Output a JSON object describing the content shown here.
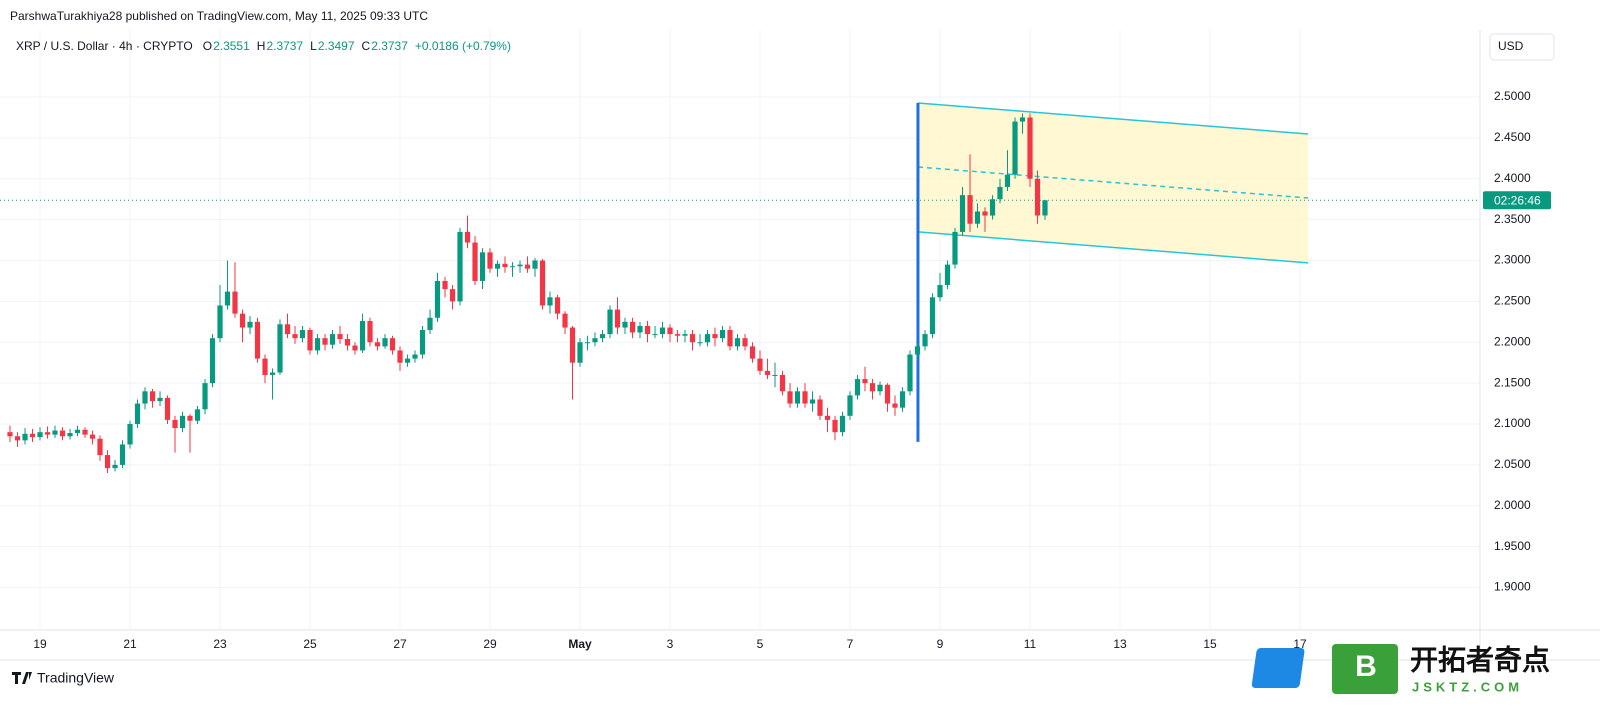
{
  "header": {
    "published": "ParshwaTurakhiya28 published on TradingView.com, May 11, 2025 09:33 UTC"
  },
  "legend": {
    "symbol": "XRP / U.S. Dollar · 4h · CRYPTO",
    "fields": [
      "O",
      "H",
      "L",
      "C"
    ],
    "change": "+0.0186 (+0.79%)"
  },
  "currency": "USD",
  "countdown": "02:26:46",
  "footer": {
    "brand": "TradingView"
  },
  "watermark": {
    "logo": "B",
    "name": "开拓者奇点",
    "site": "JSKTZ.COM"
  },
  "chart_data": {
    "type": "candlestick",
    "up_color": "#089981",
    "down_color": "#f23645",
    "grid": true,
    "xlim": [
      18.333,
      51
    ],
    "ylim": [
      1.848,
      2.582
    ],
    "xticks": [
      19,
      21,
      23,
      25,
      27,
      29,
      {
        "value": 31,
        "label": "May"
      },
      {
        "value": 33,
        "label": "3"
      },
      {
        "value": 35,
        "label": "5"
      },
      {
        "value": 37,
        "label": "7"
      },
      {
        "value": 39,
        "label": "9"
      },
      {
        "value": 41,
        "label": "11"
      },
      {
        "value": 43,
        "label": "13"
      },
      {
        "value": 45,
        "label": "15"
      },
      {
        "value": 47,
        "label": "17"
      }
    ],
    "yticks": [
      {
        "value": 1.9,
        "label": "1.9000"
      },
      {
        "value": 1.95,
        "label": "1.9500"
      },
      {
        "value": 2.0,
        "label": "2.0000"
      },
      {
        "value": 2.05,
        "label": "2.0500"
      },
      {
        "value": 2.1,
        "label": "2.1000"
      },
      {
        "value": 2.15,
        "label": "2.1500"
      },
      {
        "value": 2.2,
        "label": "2.2000"
      },
      {
        "value": 2.25,
        "label": "2.2500"
      },
      {
        "value": 2.3,
        "label": "2.3000"
      },
      {
        "value": 2.35,
        "label": "2.3500"
      },
      {
        "value": 2.4,
        "label": "2.4000"
      },
      {
        "value": 2.45,
        "label": "2.4500"
      },
      {
        "value": 2.5,
        "label": "2.5000"
      }
    ],
    "x": [
      18.333,
      18.5,
      18.667,
      18.833,
      19,
      19.167,
      19.333,
      19.5,
      19.667,
      19.833,
      20,
      20.167,
      20.333,
      20.5,
      20.667,
      20.833,
      21,
      21.167,
      21.333,
      21.5,
      21.667,
      21.833,
      22,
      22.167,
      22.333,
      22.5,
      22.667,
      22.833,
      23,
      23.167,
      23.333,
      23.5,
      23.667,
      23.833,
      24,
      24.167,
      24.333,
      24.5,
      24.667,
      24.833,
      25,
      25.167,
      25.333,
      25.5,
      25.667,
      25.833,
      26,
      26.167,
      26.333,
      26.5,
      26.667,
      26.833,
      27,
      27.167,
      27.333,
      27.5,
      27.667,
      27.833,
      28,
      28.167,
      28.333,
      28.5,
      28.667,
      28.833,
      29,
      29.167,
      29.333,
      29.5,
      29.667,
      29.833,
      30,
      30.167,
      30.333,
      30.5,
      30.667,
      30.833,
      31,
      31.167,
      31.333,
      31.5,
      31.667,
      31.833,
      32,
      32.167,
      32.333,
      32.5,
      32.667,
      32.833,
      33,
      33.167,
      33.333,
      33.5,
      33.667,
      33.833,
      34,
      34.167,
      34.333,
      34.5,
      34.667,
      34.833,
      35,
      35.167,
      35.333,
      35.5,
      35.667,
      35.833,
      36,
      36.167,
      36.333,
      36.5,
      36.667,
      36.833,
      37,
      37.167,
      37.333,
      37.5,
      37.667,
      37.833,
      38,
      38.167,
      38.333,
      38.5,
      38.667,
      38.833,
      39,
      39.167,
      39.333,
      39.5,
      39.667,
      39.833,
      40,
      40.167,
      40.333,
      40.5,
      40.667,
      40.833,
      41,
      41.167,
      41.333
    ],
    "open": [
      2.09,
      2.085,
      2.08,
      2.088,
      2.084,
      2.09,
      2.087,
      2.092,
      2.085,
      2.089,
      2.093,
      2.087,
      2.082,
      2.062,
      2.046,
      2.05,
      2.075,
      2.1,
      2.125,
      2.14,
      2.128,
      2.132,
      2.105,
      2.095,
      2.11,
      2.104,
      2.118,
      2.15,
      2.205,
      2.245,
      2.262,
      2.235,
      2.218,
      2.225,
      2.18,
      2.16,
      2.163,
      2.222,
      2.21,
      2.205,
      2.215,
      2.19,
      2.205,
      2.197,
      2.21,
      2.204,
      2.196,
      2.19,
      2.226,
      2.2,
      2.195,
      2.205,
      2.19,
      2.175,
      2.18,
      2.185,
      2.215,
      2.23,
      2.275,
      2.265,
      2.25,
      2.335,
      2.322,
      2.275,
      2.31,
      2.29,
      2.296,
      2.292,
      2.293,
      2.295,
      2.29,
      2.3,
      2.245,
      2.255,
      2.235,
      2.218,
      2.175,
      2.2,
      2.2,
      2.205,
      2.21,
      2.24,
      2.218,
      2.225,
      2.212,
      2.22,
      2.21,
      2.21,
      2.218,
      2.21,
      2.208,
      2.21,
      2.2,
      2.2,
      2.21,
      2.205,
      2.215,
      2.195,
      2.205,
      2.195,
      2.18,
      2.165,
      2.16,
      2.16,
      2.14,
      2.125,
      2.14,
      2.125,
      2.13,
      2.11,
      2.105,
      2.09,
      2.11,
      2.135,
      2.155,
      2.15,
      2.14,
      2.148,
      2.125,
      2.12,
      2.14,
      2.185,
      2.195,
      2.21,
      2.255,
      2.27,
      2.295,
      2.335,
      2.38,
      2.345,
      2.36,
      2.355,
      2.375,
      2.39,
      2.405,
      2.47,
      2.475,
      2.4,
      2.3551
    ],
    "high": [
      2.098,
      2.09,
      2.095,
      2.094,
      2.096,
      2.097,
      2.098,
      2.096,
      2.094,
      2.098,
      2.096,
      2.092,
      2.086,
      2.068,
      2.056,
      2.08,
      2.104,
      2.13,
      2.145,
      2.143,
      2.14,
      2.135,
      2.11,
      2.115,
      2.112,
      2.122,
      2.155,
      2.21,
      2.27,
      2.3,
      2.298,
      2.24,
      2.232,
      2.23,
      2.185,
      2.168,
      2.228,
      2.235,
      2.22,
      2.22,
      2.218,
      2.21,
      2.21,
      2.215,
      2.22,
      2.21,
      2.2,
      2.235,
      2.23,
      2.205,
      2.21,
      2.208,
      2.195,
      2.185,
      2.19,
      2.22,
      2.24,
      2.285,
      2.28,
      2.27,
      2.34,
      2.355,
      2.33,
      2.315,
      2.315,
      2.3,
      2.305,
      2.298,
      2.3,
      2.305,
      2.303,
      2.302,
      2.262,
      2.258,
      2.238,
      2.22,
      2.205,
      2.208,
      2.212,
      2.215,
      2.245,
      2.255,
      2.23,
      2.23,
      2.225,
      2.226,
      2.22,
      2.225,
      2.222,
      2.215,
      2.215,
      2.215,
      2.21,
      2.215,
      2.218,
      2.22,
      2.22,
      2.21,
      2.21,
      2.2,
      2.19,
      2.18,
      2.175,
      2.165,
      2.15,
      2.145,
      2.15,
      2.14,
      2.135,
      2.12,
      2.11,
      2.115,
      2.14,
      2.16,
      2.17,
      2.155,
      2.152,
      2.15,
      2.135,
      2.145,
      2.19,
      2.2,
      2.215,
      2.26,
      2.285,
      2.3,
      2.34,
      2.39,
      2.43,
      2.37,
      2.365,
      2.38,
      2.4,
      2.435,
      2.475,
      2.48,
      2.48,
      2.41,
      2.3737
    ],
    "low": [
      2.078,
      2.072,
      2.075,
      2.078,
      2.08,
      2.082,
      2.083,
      2.08,
      2.081,
      2.085,
      2.083,
      2.075,
      2.055,
      2.04,
      2.042,
      2.046,
      2.07,
      2.095,
      2.118,
      2.12,
      2.122,
      2.1,
      2.065,
      2.09,
      2.065,
      2.1,
      2.112,
      2.145,
      2.2,
      2.24,
      2.23,
      2.2,
      2.21,
      2.175,
      2.15,
      2.13,
      2.16,
      2.205,
      2.198,
      2.2,
      2.185,
      2.185,
      2.19,
      2.192,
      2.198,
      2.19,
      2.185,
      2.187,
      2.195,
      2.19,
      2.192,
      2.185,
      2.165,
      2.17,
      2.175,
      2.18,
      2.21,
      2.225,
      2.255,
      2.24,
      2.245,
      2.315,
      2.27,
      2.265,
      2.285,
      2.28,
      2.285,
      2.28,
      2.285,
      2.285,
      2.28,
      2.24,
      2.235,
      2.228,
      2.21,
      2.13,
      2.17,
      2.19,
      2.195,
      2.2,
      2.205,
      2.21,
      2.21,
      2.205,
      2.205,
      2.2,
      2.205,
      2.205,
      2.2,
      2.2,
      2.2,
      2.19,
      2.195,
      2.195,
      2.195,
      2.2,
      2.19,
      2.19,
      2.19,
      2.175,
      2.16,
      2.155,
      2.145,
      2.135,
      2.12,
      2.12,
      2.12,
      2.115,
      2.105,
      2.09,
      2.08,
      2.085,
      2.105,
      2.13,
      2.14,
      2.13,
      2.135,
      2.115,
      2.11,
      2.115,
      2.135,
      2.18,
      2.19,
      2.205,
      2.25,
      2.265,
      2.29,
      2.33,
      2.335,
      2.34,
      2.335,
      2.35,
      2.37,
      2.385,
      2.4,
      2.455,
      2.39,
      2.345,
      2.3497
    ],
    "close": [
      2.085,
      2.08,
      2.088,
      2.084,
      2.09,
      2.087,
      2.092,
      2.085,
      2.089,
      2.093,
      2.087,
      2.082,
      2.062,
      2.046,
      2.05,
      2.075,
      2.1,
      2.125,
      2.14,
      2.128,
      2.132,
      2.105,
      2.095,
      2.11,
      2.104,
      2.118,
      2.15,
      2.205,
      2.245,
      2.262,
      2.235,
      2.218,
      2.225,
      2.18,
      2.16,
      2.163,
      2.222,
      2.21,
      2.205,
      2.215,
      2.19,
      2.205,
      2.197,
      2.21,
      2.204,
      2.196,
      2.19,
      2.226,
      2.2,
      2.195,
      2.205,
      2.19,
      2.175,
      2.18,
      2.185,
      2.215,
      2.23,
      2.275,
      2.265,
      2.25,
      2.335,
      2.322,
      2.275,
      2.31,
      2.29,
      2.296,
      2.292,
      2.293,
      2.295,
      2.29,
      2.3,
      2.245,
      2.255,
      2.235,
      2.218,
      2.175,
      2.2,
      2.2,
      2.205,
      2.21,
      2.24,
      2.218,
      2.225,
      2.212,
      2.22,
      2.21,
      2.21,
      2.218,
      2.21,
      2.208,
      2.21,
      2.2,
      2.2,
      2.21,
      2.205,
      2.215,
      2.195,
      2.205,
      2.195,
      2.18,
      2.165,
      2.16,
      2.16,
      2.14,
      2.125,
      2.14,
      2.125,
      2.13,
      2.11,
      2.105,
      2.09,
      2.11,
      2.135,
      2.155,
      2.15,
      2.14,
      2.148,
      2.125,
      2.12,
      2.14,
      2.185,
      2.195,
      2.21,
      2.255,
      2.27,
      2.295,
      2.335,
      2.38,
      2.345,
      2.36,
      2.355,
      2.375,
      2.39,
      2.405,
      2.47,
      2.475,
      2.4,
      2.3551,
      2.3737
    ],
    "channel": {
      "line_color": "#26c6da",
      "fill": "#fff6c8",
      "vertical_color": "#1e6fe0",
      "upper": [
        [
          38.51,
          2.4927
        ],
        [
          47.18,
          2.4548
        ]
      ],
      "middle": [
        [
          38.51,
          2.4144
        ],
        [
          47.18,
          2.3765
        ]
      ],
      "lower": [
        [
          38.51,
          2.335
        ],
        [
          47.18,
          2.2971
        ]
      ],
      "vertical": [
        [
          38.51,
          2.4927
        ],
        [
          38.51,
          2.0782
        ]
      ]
    }
  }
}
